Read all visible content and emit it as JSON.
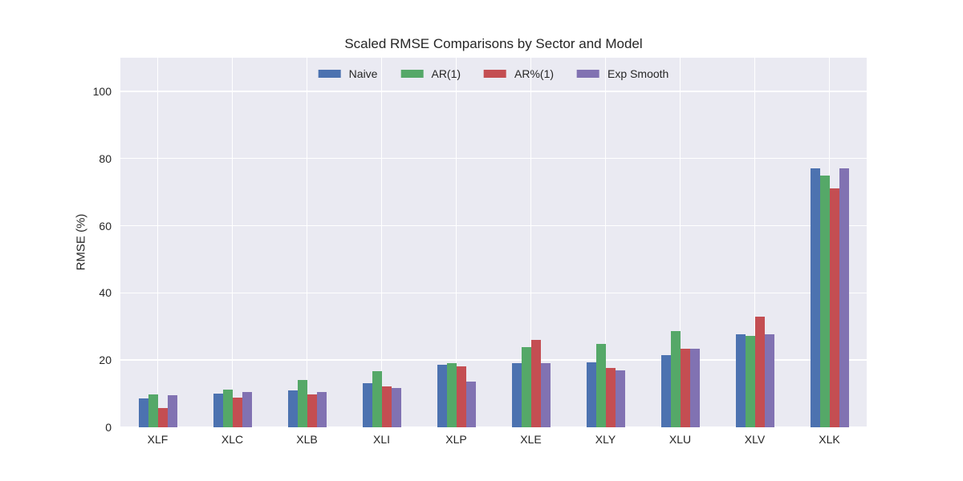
{
  "figure": {
    "background": "#FFFFFF",
    "axes_background": "#EAEAF2",
    "grid_color": "#FFFFFF",
    "text_color": "#262626"
  },
  "chart_data": {
    "type": "bar",
    "title": "Scaled RMSE Comparisons by Sector and Model",
    "xlabel": "",
    "ylabel": "RMSE (%)",
    "categories": [
      "XLF",
      "XLC",
      "XLB",
      "XLI",
      "XLP",
      "XLE",
      "XLY",
      "XLU",
      "XLV",
      "XLK"
    ],
    "series": [
      {
        "name": "Naive",
        "color": "#4C72B0",
        "values": [
          8.7,
          10.1,
          11.0,
          13.2,
          18.7,
          19.2,
          19.3,
          21.4,
          27.6,
          77.0
        ]
      },
      {
        "name": "AR(1)",
        "color": "#55A868",
        "values": [
          9.9,
          11.1,
          14.1,
          16.7,
          19.0,
          23.8,
          24.8,
          28.6,
          27.2,
          74.9
        ]
      },
      {
        "name": "AR%(1)",
        "color": "#C44E52",
        "values": [
          5.7,
          8.9,
          9.7,
          12.1,
          18.1,
          25.9,
          17.6,
          23.4,
          32.9,
          71.2
        ]
      },
      {
        "name": "Exp Smooth",
        "color": "#8172B2",
        "values": [
          9.6,
          10.5,
          10.6,
          11.8,
          13.5,
          19.0,
          16.9,
          23.4,
          27.8,
          77.0
        ]
      }
    ],
    "yticks": [
      0,
      20,
      40,
      60,
      80,
      100
    ],
    "ylim": [
      0,
      110
    ],
    "grid": true,
    "legend_position": "upper center"
  }
}
